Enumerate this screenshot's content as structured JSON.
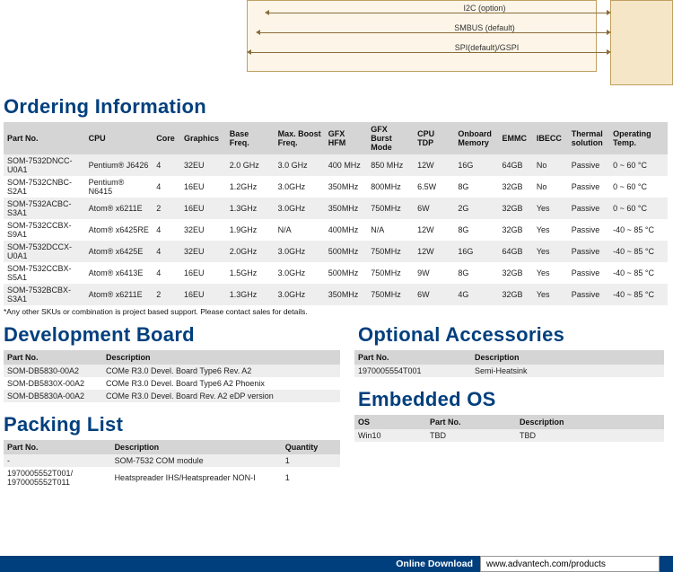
{
  "diagram": {
    "bus1": "I2C (option)",
    "bus2": "SMBUS (default)",
    "bus3": "SPI(default)/GSPI"
  },
  "sections": {
    "ordering": "Ordering Information",
    "devboard": "Development Board",
    "packing": "Packing List",
    "accessories": "Optional Accessories",
    "embedded": "Embedded OS"
  },
  "ordering": {
    "headers": [
      "Part No.",
      "CPU",
      "Core",
      "Graphics",
      "Base Freq.",
      "Max. Boost Freq.",
      "GFX HFM",
      "GFX Burst Mode",
      "CPU TDP",
      "Onboard Memory",
      "EMMC",
      "IBECC",
      "Thermal solution",
      "Operating Temp."
    ],
    "rows": [
      [
        "SOM-7532DNCC-U0A1",
        "Pentium® J6426",
        "4",
        "32EU",
        "2.0 GHz",
        "3.0 GHz",
        "400 MHz",
        "850 MHz",
        "12W",
        "16G",
        "64GB",
        "No",
        "Passive",
        "0 ~ 60 °C"
      ],
      [
        "SOM-7532CNBC-S2A1",
        "Pentium® N6415",
        "4",
        "16EU",
        "1.2GHz",
        "3.0GHz",
        "350MHz",
        "800MHz",
        "6.5W",
        "8G",
        "32GB",
        "No",
        "Passive",
        "0 ~ 60 °C"
      ],
      [
        "SOM-7532ACBC-S3A1",
        "Atom® x6211E",
        "2",
        "16EU",
        "1.3GHz",
        "3.0GHz",
        "350MHz",
        "750MHz",
        "6W",
        "2G",
        "32GB",
        "Yes",
        "Passive",
        "0 ~ 60 °C"
      ],
      [
        "SOM-7532CCBX-S9A1",
        "Atom® x6425RE",
        "4",
        "32EU",
        "1.9GHz",
        "N/A",
        "400MHz",
        "N/A",
        "12W",
        "8G",
        "32GB",
        "Yes",
        "Passive",
        "-40 ~ 85 °C"
      ],
      [
        "SOM-7532DCCX-U0A1",
        "Atom® x6425E",
        "4",
        "32EU",
        "2.0GHz",
        "3.0GHz",
        "500MHz",
        "750MHz",
        "12W",
        "16G",
        "64GB",
        "Yes",
        "Passive",
        "-40 ~ 85 °C"
      ],
      [
        "SOM-7532CCBX-S5A1",
        "Atom® x6413E",
        "4",
        "16EU",
        "1.5GHz",
        "3.0GHz",
        "500MHz",
        "750MHz",
        "9W",
        "8G",
        "32GB",
        "Yes",
        "Passive",
        "-40 ~ 85 °C"
      ],
      [
        "SOM-7532BCBX-S3A1",
        "Atom® x6211E",
        "2",
        "16EU",
        "1.3GHz",
        "3.0GHz",
        "350MHz",
        "750MHz",
        "6W",
        "4G",
        "32GB",
        "Yes",
        "Passive",
        "-40 ~ 85 °C"
      ]
    ],
    "note": "*Any other SKUs or combination is project based support. Please contact sales for details."
  },
  "devboard": {
    "headers": [
      "Part No.",
      "Description"
    ],
    "rows": [
      [
        "SOM-DB5830-00A2",
        "COMe R3.0 Devel. Board Type6 Rev. A2"
      ],
      [
        "SOM-DB5830X-00A2",
        "COMe R3.0 Devel. Board Type6 A2 Phoenix"
      ],
      [
        "SOM-DB5830A-00A2",
        "COMe R3.0 Devel. Board Rev. A2 eDP version"
      ]
    ]
  },
  "packing": {
    "headers": [
      "Part No.",
      "Description",
      "Quantity"
    ],
    "rows": [
      [
        "-",
        "SOM-7532 COM module",
        "1"
      ],
      [
        "1970005552T001/ 1970005552T011",
        "Heatspreader IHS/Heatspreader NON-I",
        "1"
      ]
    ]
  },
  "accessories": {
    "headers": [
      "Part No.",
      "Description"
    ],
    "rows": [
      [
        "1970005554T001",
        "Semi-Heatsink"
      ]
    ]
  },
  "embedded": {
    "headers": [
      "OS",
      "Part No.",
      "Description"
    ],
    "rows": [
      [
        "Win10",
        "TBD",
        "TBD"
      ]
    ]
  },
  "footer": {
    "label": "Online Download",
    "url": "www.advantech.com/products"
  }
}
